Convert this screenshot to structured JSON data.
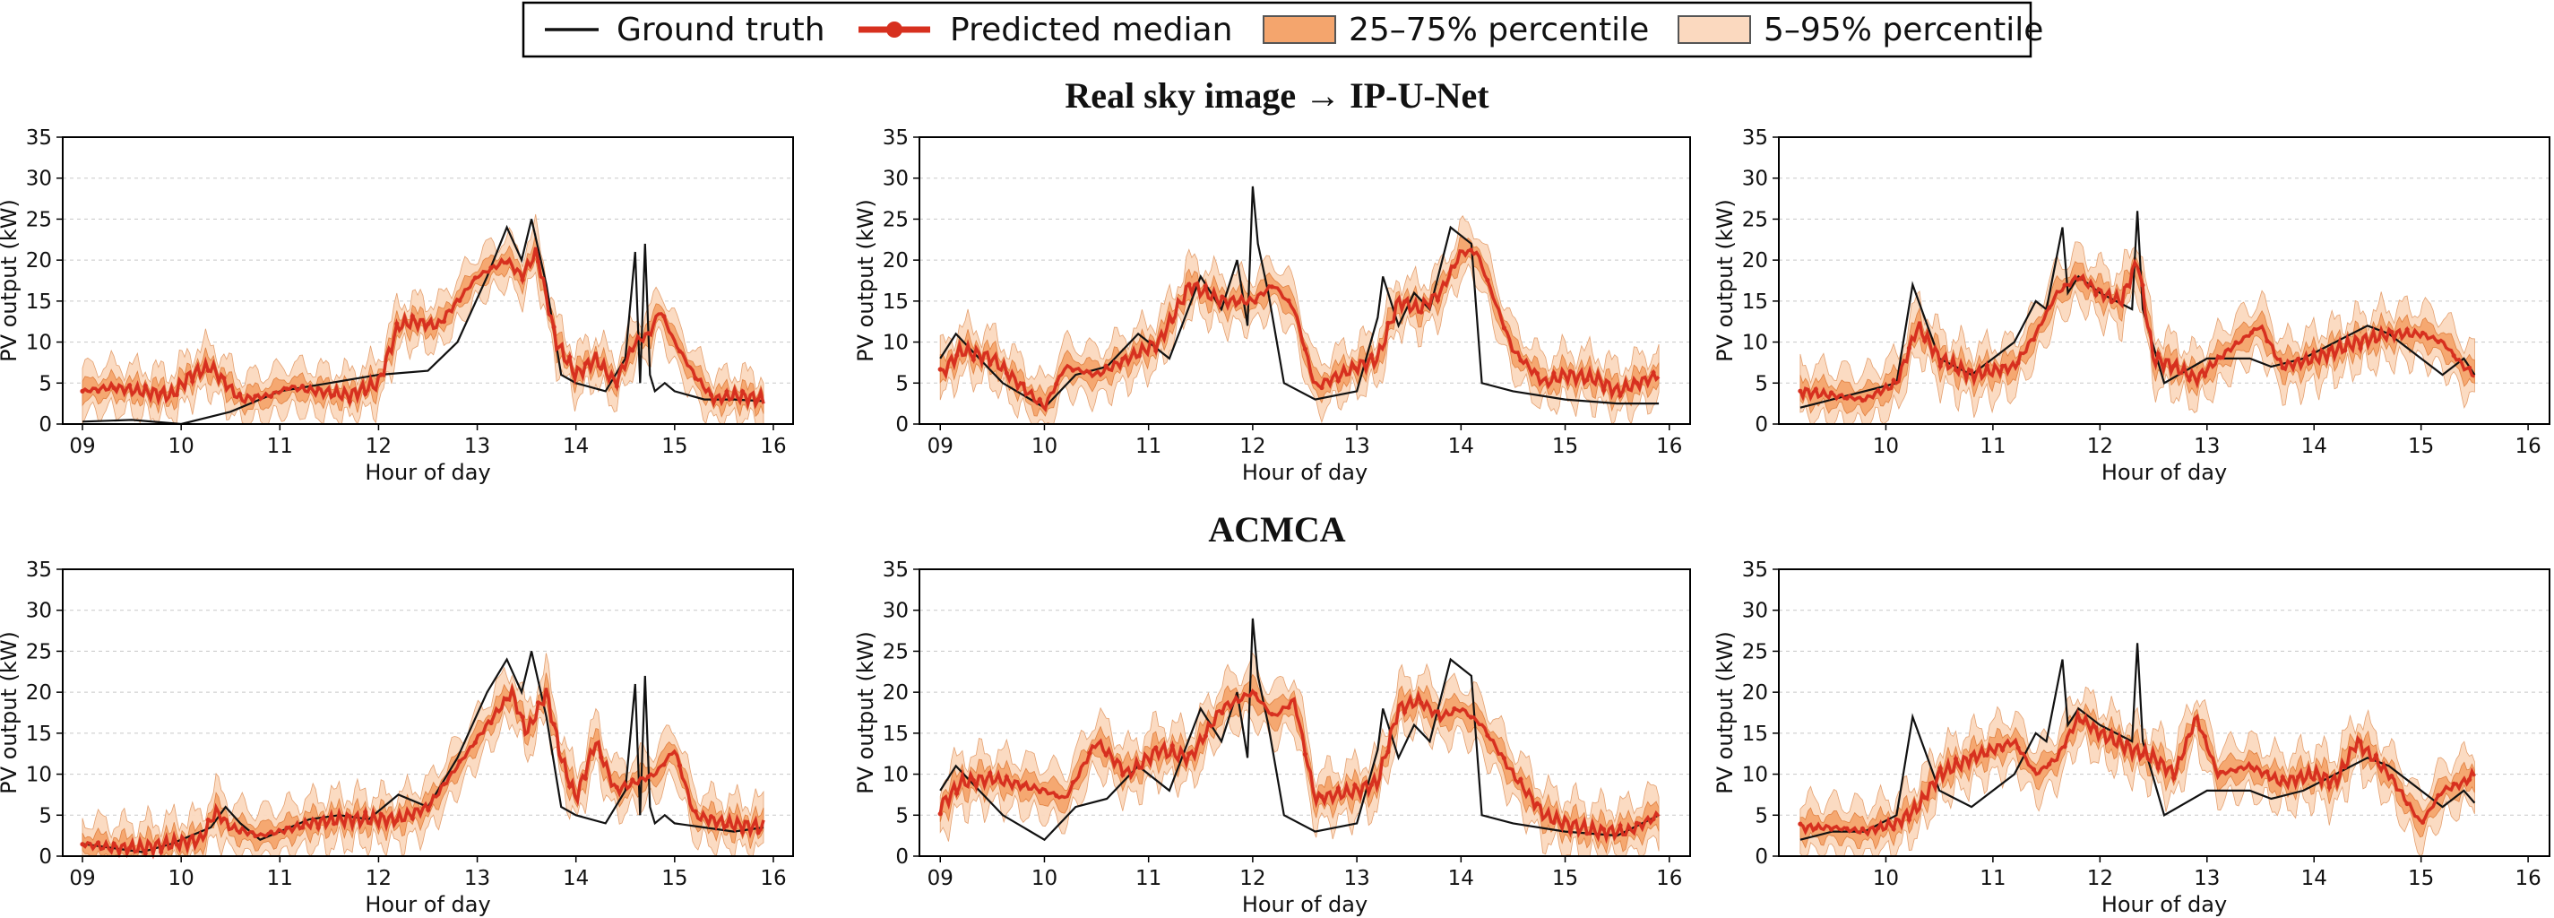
{
  "legend": {
    "ground_truth": "Ground truth",
    "predicted_median": "Predicted median",
    "p25_75": "25–75% percentile",
    "p5_95": "5–95% percentile"
  },
  "row_titles": [
    "Real sky image → IP-U-Net",
    "ACMCA"
  ],
  "colors": {
    "ground_truth": "#111111",
    "median": "#d7301f",
    "iqr_fill": "#f4a56d",
    "iqr_edge": "#e08040",
    "p90_fill": "#fbd9bf",
    "p90_edge": "#e4a070"
  },
  "chart_data": [
    {
      "type": "line",
      "title": "Real sky image → IP-U-Net",
      "xlabel": "Hour of day",
      "ylabel": "PV output (kW)",
      "xlim": [
        8.8,
        16.2
      ],
      "ylim": [
        0,
        35
      ],
      "xticks": [
        9,
        10,
        11,
        12,
        13,
        14,
        15,
        16
      ],
      "xticklabels": [
        "09",
        "10",
        "11",
        "12",
        "13",
        "14",
        "15",
        "16"
      ],
      "yticks": [
        0,
        5,
        10,
        15,
        20,
        25,
        30,
        35
      ],
      "grid": true,
      "ground_truth": {
        "x": [
          9.0,
          9.5,
          10.0,
          10.5,
          11.0,
          11.5,
          12.0,
          12.5,
          12.8,
          13.1,
          13.3,
          13.45,
          13.55,
          13.7,
          13.85,
          14.0,
          14.3,
          14.5,
          14.6,
          14.65,
          14.7,
          14.75,
          14.8,
          14.9,
          15.0,
          15.3,
          15.6,
          15.9
        ],
        "y": [
          0.3,
          0.5,
          0.0,
          1.5,
          4.0,
          5.0,
          6.0,
          6.5,
          10.0,
          18.0,
          24.0,
          20.0,
          25.0,
          17.0,
          6.0,
          5.0,
          4.0,
          8.0,
          21.0,
          5.0,
          22.0,
          6.0,
          4.0,
          5.0,
          4.0,
          3.0,
          3.0,
          2.8
        ]
      },
      "median": {
        "x": [
          9.0,
          9.3,
          9.6,
          9.9,
          10.1,
          10.3,
          10.6,
          10.9,
          11.1,
          11.4,
          11.7,
          12.0,
          12.2,
          12.35,
          12.6,
          13.0,
          13.3,
          13.45,
          13.6,
          13.8,
          14.0,
          14.2,
          14.4,
          14.6,
          14.75,
          14.85,
          15.0,
          15.2,
          15.4,
          15.6,
          15.9
        ],
        "y": [
          4.0,
          4.5,
          4.0,
          3.5,
          6.0,
          7.0,
          3.0,
          3.5,
          4.5,
          4.0,
          3.5,
          5.0,
          12.0,
          12.5,
          12.0,
          18.0,
          20.0,
          18.0,
          21.0,
          10.0,
          6.0,
          8.0,
          5.0,
          10.0,
          11.0,
          14.0,
          10.0,
          6.0,
          3.0,
          3.5,
          3.0
        ]
      },
      "iqr_halfwidth": 1.2,
      "p90_halfwidth": 2.8
    },
    {
      "type": "line",
      "xlabel": "Hour of day",
      "ylabel": "PV output (kW)",
      "xlim": [
        8.8,
        16.2
      ],
      "ylim": [
        0,
        35
      ],
      "xticks": [
        9,
        10,
        11,
        12,
        13,
        14,
        15,
        16
      ],
      "xticklabels": [
        "09",
        "10",
        "11",
        "12",
        "13",
        "14",
        "15",
        "16"
      ],
      "yticks": [
        0,
        5,
        10,
        15,
        20,
        25,
        30,
        35
      ],
      "grid": true,
      "ground_truth": {
        "x": [
          9.0,
          9.15,
          9.3,
          9.6,
          10.0,
          10.3,
          10.6,
          10.9,
          11.2,
          11.5,
          11.7,
          11.85,
          11.95,
          12.0,
          12.05,
          12.15,
          12.3,
          12.6,
          13.0,
          13.2,
          13.25,
          13.4,
          13.55,
          13.7,
          13.9,
          14.1,
          14.2,
          14.5,
          15.0,
          15.5,
          15.9
        ],
        "y": [
          8.0,
          11.0,
          9.0,
          5.0,
          2.0,
          6.0,
          7.0,
          11.0,
          8.0,
          18.0,
          14.0,
          20.0,
          12.0,
          29.0,
          22.0,
          16.0,
          5.0,
          3.0,
          4.0,
          13.0,
          18.0,
          12.0,
          16.0,
          14.0,
          24.0,
          22.0,
          5.0,
          4.0,
          3.0,
          2.5,
          2.5
        ]
      },
      "median": {
        "x": [
          9.0,
          9.2,
          9.5,
          10.0,
          10.2,
          10.5,
          10.8,
          11.1,
          11.4,
          11.7,
          12.0,
          12.2,
          12.4,
          12.6,
          13.0,
          13.2,
          13.4,
          13.6,
          13.8,
          14.0,
          14.15,
          14.5,
          14.8,
          15.0,
          15.3,
          15.5,
          15.9
        ],
        "y": [
          6.0,
          9.0,
          8.0,
          2.0,
          7.0,
          6.0,
          8.0,
          10.0,
          17.0,
          15.0,
          15.0,
          17.0,
          14.0,
          4.5,
          7.0,
          8.0,
          15.0,
          14.0,
          16.0,
          21.0,
          21.0,
          9.0,
          5.0,
          6.0,
          5.5,
          4.0,
          6.0
        ]
      },
      "iqr_halfwidth": 1.3,
      "p90_halfwidth": 3.0
    },
    {
      "type": "line",
      "xlabel": "Hour of day",
      "ylabel": "PV output (kW)",
      "xlim": [
        9.0,
        16.2
      ],
      "ylim": [
        0,
        35
      ],
      "xticks": [
        10,
        11,
        12,
        13,
        14,
        15,
        16
      ],
      "xticklabels": [
        "10",
        "11",
        "12",
        "13",
        "14",
        "15",
        "16"
      ],
      "yticks": [
        0,
        5,
        10,
        15,
        20,
        25,
        30,
        35
      ],
      "grid": true,
      "ground_truth": {
        "x": [
          9.2,
          9.5,
          9.8,
          10.1,
          10.25,
          10.5,
          10.8,
          11.2,
          11.4,
          11.5,
          11.65,
          11.7,
          11.8,
          12.0,
          12.3,
          12.35,
          12.4,
          12.6,
          13.0,
          13.4,
          13.6,
          13.9,
          14.2,
          14.5,
          14.7,
          15.0,
          15.2,
          15.4,
          15.5
        ],
        "y": [
          2.0,
          3.0,
          4.0,
          5.0,
          17.0,
          8.0,
          6.0,
          10.0,
          15.0,
          14.0,
          24.0,
          16.0,
          18.0,
          16.0,
          14.0,
          26.0,
          14.0,
          5.0,
          8.0,
          8.0,
          7.0,
          8.0,
          10.0,
          12.0,
          11.0,
          8.0,
          6.0,
          8.0,
          6.0
        ]
      },
      "median": {
        "x": [
          9.2,
          9.5,
          9.8,
          10.1,
          10.3,
          10.5,
          10.8,
          11.2,
          11.4,
          11.6,
          11.8,
          12.0,
          12.2,
          12.35,
          12.5,
          12.7,
          12.9,
          13.2,
          13.5,
          13.7,
          14.0,
          14.2,
          14.4,
          14.7,
          15.0,
          15.2,
          15.4,
          15.5
        ],
        "y": [
          4.0,
          3.5,
          3.0,
          5.0,
          12.0,
          8.0,
          6.0,
          7.0,
          11.0,
          16.0,
          18.0,
          16.0,
          15.0,
          20.0,
          8.0,
          7.0,
          5.5,
          9.0,
          12.0,
          7.0,
          8.0,
          9.0,
          10.0,
          11.0,
          11.0,
          10.0,
          7.0,
          6.0
        ]
      },
      "iqr_halfwidth": 1.4,
      "p90_halfwidth": 3.2
    },
    {
      "type": "line",
      "title": "ACMCA",
      "xlabel": "Hour of day",
      "ylabel": "PV output (kW)",
      "xlim": [
        8.8,
        16.2
      ],
      "ylim": [
        0,
        35
      ],
      "xticks": [
        9,
        10,
        11,
        12,
        13,
        14,
        15,
        16
      ],
      "xticklabels": [
        "09",
        "10",
        "11",
        "12",
        "13",
        "14",
        "15",
        "16"
      ],
      "yticks": [
        0,
        5,
        10,
        15,
        20,
        25,
        30,
        35
      ],
      "grid": true,
      "ground_truth": {
        "x": [
          9.0,
          9.3,
          9.6,
          9.9,
          10.1,
          10.3,
          10.45,
          10.6,
          10.8,
          11.0,
          11.3,
          11.6,
          11.9,
          12.2,
          12.5,
          12.8,
          13.1,
          13.3,
          13.45,
          13.55,
          13.7,
          13.85,
          14.0,
          14.3,
          14.5,
          14.6,
          14.65,
          14.7,
          14.75,
          14.8,
          14.9,
          15.0,
          15.3,
          15.6,
          15.9
        ],
        "y": [
          1.5,
          1.0,
          0.5,
          1.5,
          2.5,
          3.5,
          6.0,
          4.0,
          2.0,
          3.0,
          4.5,
          5.0,
          4.5,
          7.5,
          6.0,
          12.0,
          20.0,
          24.0,
          20.0,
          25.0,
          17.0,
          6.0,
          5.0,
          4.0,
          8.0,
          21.0,
          5.0,
          22.0,
          6.0,
          4.0,
          5.0,
          4.0,
          3.5,
          3.0,
          3.5
        ]
      },
      "median": {
        "x": [
          9.0,
          9.3,
          9.6,
          9.9,
          10.2,
          10.35,
          10.5,
          10.8,
          11.0,
          11.3,
          11.6,
          11.9,
          12.2,
          12.5,
          12.8,
          13.1,
          13.35,
          13.5,
          13.7,
          13.85,
          14.0,
          14.2,
          14.4,
          14.6,
          14.8,
          15.0,
          15.2,
          15.5,
          15.9
        ],
        "y": [
          1.5,
          1.0,
          1.0,
          1.5,
          2.0,
          5.5,
          3.5,
          2.5,
          3.0,
          4.0,
          4.5,
          4.5,
          4.5,
          6.0,
          11.0,
          16.0,
          20.0,
          15.0,
          20.0,
          12.0,
          7.0,
          14.0,
          8.0,
          9.0,
          10.0,
          13.0,
          5.0,
          4.0,
          3.5
        ]
      },
      "iqr_halfwidth": 1.3,
      "p90_halfwidth": 3.0
    },
    {
      "type": "line",
      "xlabel": "Hour of day",
      "ylabel": "PV output (kW)",
      "xlim": [
        8.8,
        16.2
      ],
      "ylim": [
        0,
        35
      ],
      "xticks": [
        9,
        10,
        11,
        12,
        13,
        14,
        15,
        16
      ],
      "xticklabels": [
        "09",
        "10",
        "11",
        "12",
        "13",
        "14",
        "15",
        "16"
      ],
      "yticks": [
        0,
        5,
        10,
        15,
        20,
        25,
        30,
        35
      ],
      "grid": true,
      "ground_truth": {
        "x": [
          9.0,
          9.15,
          9.3,
          9.6,
          10.0,
          10.3,
          10.6,
          10.9,
          11.2,
          11.5,
          11.7,
          11.85,
          11.95,
          12.0,
          12.05,
          12.15,
          12.3,
          12.6,
          13.0,
          13.2,
          13.25,
          13.4,
          13.55,
          13.7,
          13.9,
          14.1,
          14.2,
          14.5,
          15.0,
          15.5,
          15.9
        ],
        "y": [
          8.0,
          11.0,
          9.0,
          5.0,
          2.0,
          6.0,
          7.0,
          11.0,
          8.0,
          18.0,
          14.0,
          20.0,
          12.0,
          29.0,
          22.0,
          16.0,
          5.0,
          3.0,
          4.0,
          13.0,
          18.0,
          12.0,
          16.0,
          14.0,
          24.0,
          22.0,
          5.0,
          4.0,
          3.0,
          2.5,
          5.0
        ]
      },
      "median": {
        "x": [
          9.0,
          9.2,
          9.5,
          10.0,
          10.2,
          10.5,
          10.8,
          11.1,
          11.4,
          11.7,
          12.0,
          12.2,
          12.4,
          12.6,
          13.0,
          13.2,
          13.4,
          13.6,
          13.8,
          14.0,
          14.2,
          14.5,
          14.8,
          15.0,
          15.3,
          15.6,
          15.9
        ],
        "y": [
          6.0,
          9.0,
          9.5,
          8.0,
          7.0,
          14.0,
          10.0,
          13.0,
          12.0,
          18.0,
          20.0,
          17.0,
          19.0,
          7.0,
          8.0,
          9.0,
          18.0,
          19.0,
          17.0,
          18.0,
          16.0,
          10.0,
          5.0,
          4.0,
          3.0,
          3.0,
          5.0
        ]
      },
      "iqr_halfwidth": 1.4,
      "p90_halfwidth": 3.2
    },
    {
      "type": "line",
      "xlabel": "Hour of day",
      "ylabel": "PV output (kW)",
      "xlim": [
        9.0,
        16.2
      ],
      "ylim": [
        0,
        35
      ],
      "xticks": [
        10,
        11,
        12,
        13,
        14,
        15,
        16
      ],
      "xticklabels": [
        "10",
        "11",
        "12",
        "13",
        "14",
        "15",
        "16"
      ],
      "yticks": [
        0,
        5,
        10,
        15,
        20,
        25,
        30,
        35
      ],
      "grid": true,
      "ground_truth": {
        "x": [
          9.2,
          9.5,
          9.8,
          10.1,
          10.25,
          10.5,
          10.8,
          11.2,
          11.4,
          11.5,
          11.65,
          11.7,
          11.8,
          12.0,
          12.3,
          12.35,
          12.4,
          12.6,
          13.0,
          13.4,
          13.6,
          13.9,
          14.2,
          14.5,
          14.7,
          15.0,
          15.2,
          15.4,
          15.5
        ],
        "y": [
          2.0,
          3.0,
          3.0,
          5.0,
          17.0,
          8.0,
          6.0,
          10.0,
          15.0,
          14.0,
          24.0,
          16.0,
          18.0,
          16.0,
          14.0,
          26.0,
          14.0,
          5.0,
          8.0,
          8.0,
          7.0,
          8.0,
          10.0,
          12.0,
          11.0,
          8.0,
          6.0,
          8.0,
          6.5
        ]
      },
      "median": {
        "x": [
          9.2,
          9.5,
          9.8,
          10.1,
          10.3,
          10.5,
          10.8,
          11.2,
          11.4,
          11.6,
          11.8,
          12.0,
          12.3,
          12.5,
          12.7,
          12.9,
          13.1,
          13.4,
          13.7,
          14.0,
          14.2,
          14.4,
          14.7,
          15.0,
          15.2,
          15.4,
          15.5
        ],
        "y": [
          3.5,
          3.5,
          3.0,
          4.0,
          6.0,
          10.0,
          12.0,
          14.0,
          10.0,
          12.0,
          17.0,
          15.0,
          13.0,
          12.0,
          10.0,
          17.0,
          10.0,
          11.0,
          9.0,
          10.0,
          9.0,
          14.0,
          10.0,
          4.0,
          8.0,
          9.0,
          10.0
        ]
      },
      "iqr_halfwidth": 1.4,
      "p90_halfwidth": 3.2
    }
  ]
}
